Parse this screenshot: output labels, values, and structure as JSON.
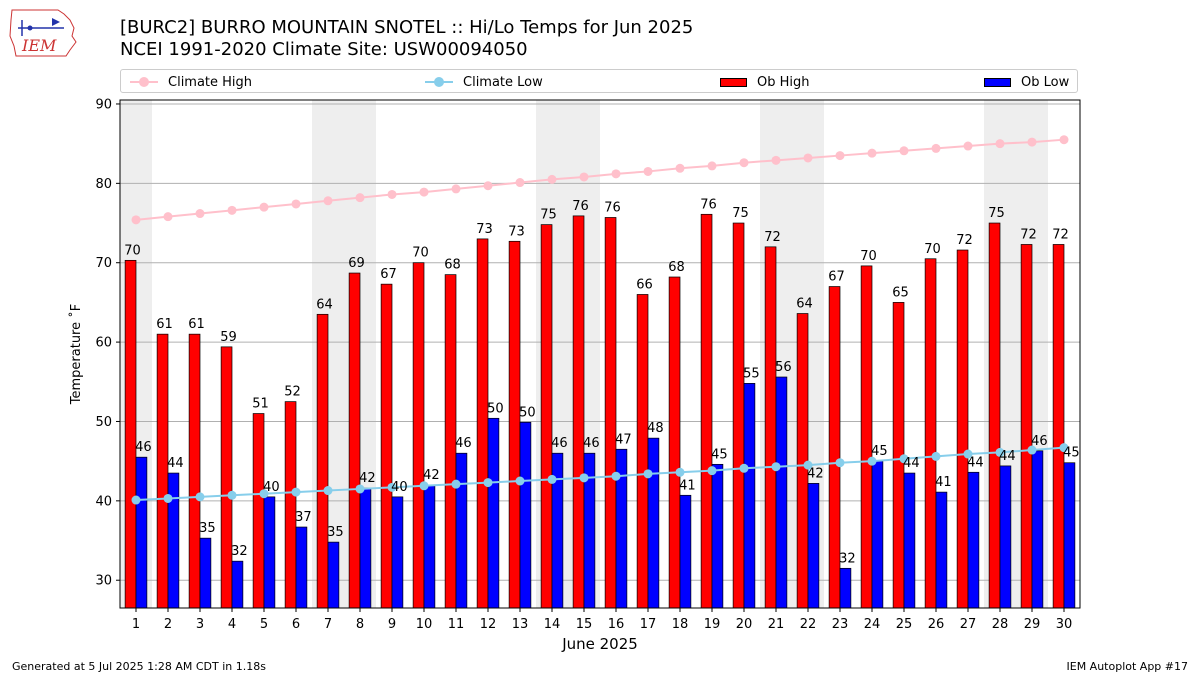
{
  "header": {
    "logo_text": "IEM",
    "title_line1": "[BURC2] BURRO MOUNTAIN SNOTEL :: Hi/Lo Temps for Jun 2025",
    "title_line2": "NCEI 1991-2020 Climate Site: USW00094050"
  },
  "footer": {
    "left": "Generated at 5 Jul 2025 1:28 AM CDT in 1.18s",
    "right": "IEM Autoplot App #17"
  },
  "legend": [
    {
      "label": "Climate High",
      "kind": "line",
      "color": "#ffc0cb"
    },
    {
      "label": "Climate Low",
      "kind": "line",
      "color": "#87ceeb"
    },
    {
      "label": "Ob High",
      "kind": "bar",
      "color": "#ff0000"
    },
    {
      "label": "Ob Low",
      "kind": "bar",
      "color": "#0000ff"
    }
  ],
  "chart_data": {
    "type": "bar",
    "xlabel": "June 2025",
    "ylabel": "Temperature ˚F",
    "ylim": [
      26.5,
      90.5
    ],
    "yticks": [
      30,
      40,
      50,
      60,
      70,
      80,
      90
    ],
    "grid": true,
    "legend_position": "top",
    "categories": [
      "1",
      "2",
      "3",
      "4",
      "5",
      "6",
      "7",
      "8",
      "9",
      "10",
      "11",
      "12",
      "13",
      "14",
      "15",
      "16",
      "17",
      "18",
      "19",
      "20",
      "21",
      "22",
      "23",
      "24",
      "25",
      "26",
      "27",
      "28",
      "29",
      "30"
    ],
    "weekend_shading_days": [
      1,
      7,
      8,
      14,
      15,
      21,
      22,
      28,
      29
    ],
    "series": [
      {
        "name": "Ob High",
        "kind": "bar",
        "color": "#ff0000",
        "values": [
          70.3,
          61.0,
          61.0,
          59.4,
          51.0,
          52.5,
          63.5,
          68.7,
          67.3,
          70.0,
          68.5,
          73.0,
          72.7,
          74.8,
          75.9,
          75.7,
          66.0,
          68.2,
          76.1,
          75.0,
          72.0,
          63.6,
          67.0,
          69.6,
          65.0,
          70.5,
          71.6,
          75.0,
          72.3,
          72.3
        ],
        "labels": [
          "70",
          "61",
          "61",
          "59",
          "51",
          "52",
          "64",
          "69",
          "67",
          "70",
          "68",
          "73",
          "73",
          "75",
          "76",
          "76",
          "66",
          "68",
          "76",
          "75",
          "72",
          "64",
          "67",
          "70",
          "65",
          "70",
          "72",
          "75",
          "72",
          "72"
        ]
      },
      {
        "name": "Ob Low",
        "kind": "bar",
        "color": "#0000ff",
        "values": [
          45.5,
          43.5,
          35.3,
          32.4,
          40.5,
          36.7,
          34.8,
          41.6,
          40.5,
          42.0,
          46.0,
          50.4,
          49.9,
          46.0,
          46.0,
          46.5,
          47.9,
          40.7,
          44.6,
          54.8,
          55.6,
          42.2,
          31.5,
          45.0,
          43.5,
          41.1,
          43.6,
          44.4,
          46.3,
          44.8
        ],
        "labels": [
          "46",
          "44",
          "35",
          "32",
          "40",
          "37",
          "35",
          "42",
          "40",
          "42",
          "46",
          "50",
          "50",
          "46",
          "46",
          "47",
          "48",
          "41",
          "45",
          "55",
          "56",
          "42",
          "32",
          "45",
          "44",
          "41",
          "44",
          "44",
          "46",
          "45"
        ]
      },
      {
        "name": "Climate High",
        "kind": "line",
        "color": "#ffc0cb",
        "values": [
          75.4,
          75.8,
          76.2,
          76.6,
          77.0,
          77.4,
          77.8,
          78.2,
          78.6,
          78.9,
          79.3,
          79.7,
          80.1,
          80.5,
          80.8,
          81.2,
          81.5,
          81.9,
          82.2,
          82.6,
          82.9,
          83.2,
          83.5,
          83.8,
          84.1,
          84.4,
          84.7,
          85.0,
          85.2,
          85.5
        ]
      },
      {
        "name": "Climate Low",
        "kind": "line",
        "color": "#87ceeb",
        "values": [
          40.1,
          40.3,
          40.5,
          40.7,
          40.9,
          41.1,
          41.3,
          41.5,
          41.7,
          41.9,
          42.1,
          42.3,
          42.5,
          42.7,
          42.9,
          43.1,
          43.4,
          43.6,
          43.8,
          44.1,
          44.3,
          44.5,
          44.8,
          45.0,
          45.3,
          45.6,
          45.9,
          46.1,
          46.4,
          46.7
        ]
      }
    ]
  }
}
